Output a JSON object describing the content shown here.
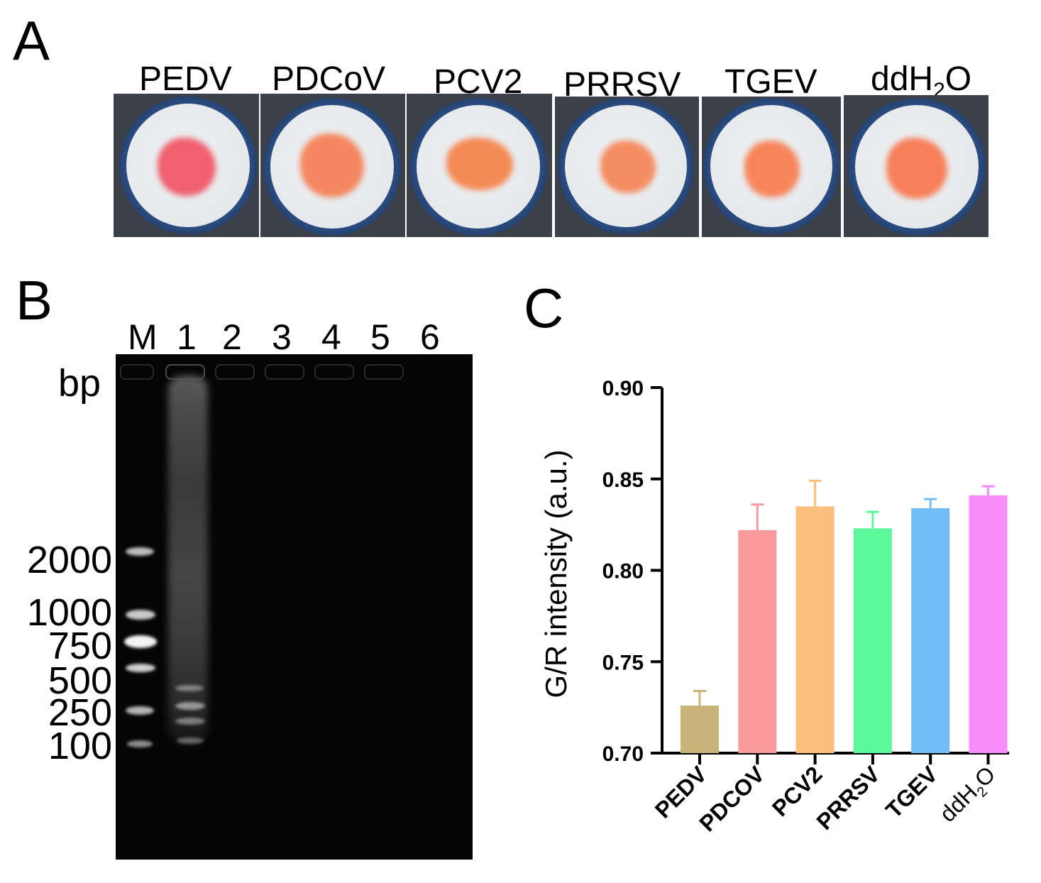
{
  "panel_a": {
    "letter": "A",
    "wells": [
      {
        "label": "PEDV",
        "spot_color": "#f0606e"
      },
      {
        "label": "PDCoV",
        "spot_color": "#f4875f"
      },
      {
        "label": "PCV2",
        "spot_color": "#f48a55"
      },
      {
        "label": "PRRSV",
        "spot_color": "#f48d62"
      },
      {
        "label": "TGEV",
        "spot_color": "#f7855c"
      },
      {
        "label_main": "ddH",
        "label_sub": "2",
        "label_tail": "O",
        "spot_color": "#f7805a"
      }
    ]
  },
  "panel_b": {
    "letter": "B",
    "lanes": [
      "M",
      "1",
      "2",
      "3",
      "4",
      "5",
      "6"
    ],
    "unit": "bp",
    "ladder": [
      "2000",
      "1000",
      "750",
      "500",
      "250",
      "100"
    ]
  },
  "panel_c": {
    "letter": "C",
    "chart_data": {
      "type": "bar",
      "categories": [
        "PEDV",
        "PDCOV",
        "PCV2",
        "PRRSV",
        "TGEV",
        "ddH2O"
      ],
      "category_display": [
        {
          "main": "PEDV"
        },
        {
          "main": "PDCOV"
        },
        {
          "main": "PCV2"
        },
        {
          "main": "PRRSV"
        },
        {
          "main": "TGEV"
        },
        {
          "main": "ddH",
          "sub": "2",
          "tail": "O"
        }
      ],
      "values": [
        0.726,
        0.822,
        0.835,
        0.823,
        0.834,
        0.841
      ],
      "errors": [
        0.008,
        0.014,
        0.014,
        0.009,
        0.005,
        0.005
      ],
      "colors": [
        "#c8b478",
        "#fb9a9c",
        "#fbbf7d",
        "#5cf99a",
        "#72bdf8",
        "#f88cf8"
      ],
      "ylabel": "G/R intensity (a.u.)",
      "ylim": [
        0.7,
        0.9
      ],
      "yticks": [
        "0.70",
        "0.75",
        "0.80",
        "0.85",
        "0.90"
      ]
    }
  }
}
